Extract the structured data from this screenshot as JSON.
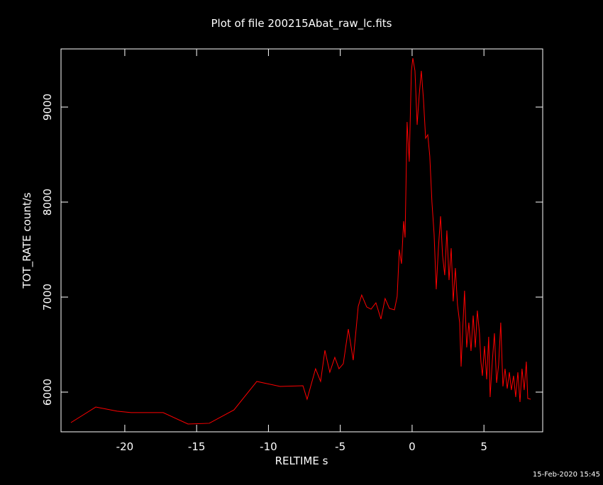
{
  "chart_data": {
    "type": "line",
    "title": "Plot of file 200215Abat_raw_lc.fits",
    "x_label": "RELTIME  s",
    "y_label": "TOT_RATE  count/s",
    "footer": "15-Feb-2020 15:45",
    "color": "#ff0000",
    "xlim": [
      -24.44,
      9.09
    ],
    "ylim": [
      5582,
      9612
    ],
    "xticks": [
      -20,
      -15,
      -10,
      -5,
      0,
      5
    ],
    "yticks": [
      6000,
      7000,
      8000,
      9000
    ],
    "x": [
      -23.75,
      -22.02,
      -20.54,
      -19.56,
      -17.33,
      -15.6,
      -14.12,
      -12.4,
      -10.81,
      -9.19,
      -7.6,
      -7.31,
      -6.72,
      -6.37,
      -6.07,
      -5.73,
      -5.38,
      -5.09,
      -4.79,
      -4.44,
      -4.1,
      -3.75,
      -3.51,
      -3.16,
      -2.86,
      -2.52,
      -2.17,
      -1.88,
      -1.58,
      -1.23,
      -1.04,
      -0.89,
      -0.74,
      -0.59,
      -0.49,
      -0.35,
      -0.2,
      -0.05,
      0.05,
      0.2,
      0.35,
      0.49,
      0.64,
      0.79,
      0.94,
      1.09,
      1.23,
      1.38,
      1.53,
      1.68,
      1.83,
      1.98,
      2.12,
      2.27,
      2.42,
      2.57,
      2.72,
      2.86,
      3.01,
      3.16,
      3.31,
      3.41,
      3.51,
      3.65,
      3.8,
      3.95,
      4.1,
      4.25,
      4.4,
      4.54,
      4.69,
      4.79,
      4.89,
      5.04,
      5.19,
      5.33,
      5.43,
      5.58,
      5.73,
      5.88,
      6.02,
      6.17,
      6.32,
      6.47,
      6.62,
      6.77,
      6.91,
      7.06,
      7.21,
      7.36,
      7.51,
      7.65,
      7.8,
      7.95,
      8.05,
      8.25
    ],
    "values": [
      5679,
      5843,
      5799,
      5784,
      5784,
      5664,
      5672,
      5813,
      6112,
      6060,
      6067,
      5925,
      6246,
      6112,
      6440,
      6209,
      6366,
      6246,
      6299,
      6664,
      6336,
      6903,
      7022,
      6896,
      6873,
      6940,
      6769,
      6985,
      6881,
      6866,
      7007,
      7500,
      7351,
      7799,
      7627,
      8843,
      8425,
      9381,
      9515,
      9381,
      8813,
      9119,
      9381,
      9082,
      8672,
      8709,
      8485,
      8000,
      7664,
      7082,
      7515,
      7851,
      7440,
      7231,
      7701,
      7179,
      7515,
      6955,
      7306,
      6918,
      6731,
      6269,
      6619,
      7067,
      6470,
      6731,
      6433,
      6806,
      6470,
      6858,
      6619,
      6321,
      6172,
      6485,
      6134,
      6582,
      5948,
      6321,
      6619,
      6097,
      6284,
      6731,
      6060,
      6246,
      6037,
      6209,
      6022,
      6172,
      5948,
      6209,
      5896,
      6246,
      6022,
      6321,
      5933,
      5925
    ]
  }
}
